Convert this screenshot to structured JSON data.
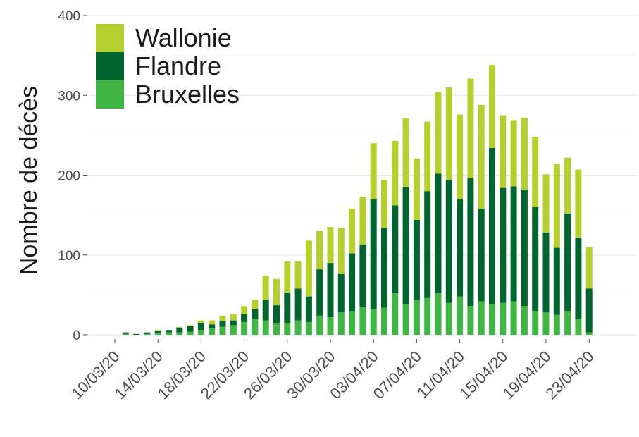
{
  "chart_data": {
    "type": "bar",
    "stacked": true,
    "ylabel": "Nombre de décès",
    "xlabel": "",
    "ylim": [
      0,
      400
    ],
    "yticks": [
      0,
      100,
      200,
      300,
      400
    ],
    "grid": true,
    "legend_position": "top-left",
    "categories": [
      "10/03/20",
      "11/03/20",
      "12/03/20",
      "13/03/20",
      "14/03/20",
      "15/03/20",
      "16/03/20",
      "17/03/20",
      "18/03/20",
      "19/03/20",
      "20/03/20",
      "21/03/20",
      "22/03/20",
      "23/03/20",
      "24/03/20",
      "25/03/20",
      "26/03/20",
      "27/03/20",
      "28/03/20",
      "29/03/20",
      "30/03/20",
      "31/03/20",
      "01/04/20",
      "02/04/20",
      "03/04/20",
      "04/04/20",
      "05/04/20",
      "06/04/20",
      "07/04/20",
      "08/04/20",
      "09/04/20",
      "10/04/20",
      "11/04/20",
      "12/04/20",
      "13/04/20",
      "14/04/20",
      "15/04/20",
      "16/04/20",
      "17/04/20",
      "18/04/20",
      "19/04/20",
      "20/04/20",
      "21/04/20",
      "22/04/20",
      "23/04/20"
    ],
    "tick_labels": [
      "10/03/20",
      "14/03/20",
      "18/03/20",
      "22/03/20",
      "26/03/20",
      "30/03/20",
      "03/04/20",
      "07/04/20",
      "11/04/20",
      "15/04/20",
      "19/04/20",
      "23/04/20"
    ],
    "series": [
      {
        "name": "Bruxelles",
        "color": "#41b543",
        "values": [
          0,
          1,
          0,
          1,
          2,
          3,
          3,
          4,
          6,
          8,
          10,
          12,
          16,
          20,
          18,
          15,
          15,
          18,
          16,
          24,
          22,
          28,
          30,
          35,
          32,
          34,
          52,
          38,
          44,
          46,
          52,
          40,
          48,
          36,
          42,
          38,
          40,
          42,
          36,
          30,
          28,
          25,
          30,
          20,
          3
        ]
      },
      {
        "name": "Flandre",
        "color": "#00642f",
        "values": [
          0,
          2,
          1,
          2,
          3,
          3,
          6,
          7,
          9,
          5,
          7,
          6,
          10,
          12,
          26,
          22,
          38,
          40,
          32,
          58,
          68,
          48,
          72,
          78,
          138,
          100,
          110,
          147,
          100,
          134,
          150,
          154,
          122,
          160,
          116,
          196,
          144,
          144,
          146,
          130,
          100,
          84,
          122,
          102,
          55
        ]
      },
      {
        "name": "Wallonie",
        "color": "#b5cf2f",
        "values": [
          0,
          0,
          0,
          0,
          1,
          0,
          1,
          1,
          3,
          5,
          7,
          8,
          10,
          12,
          30,
          33,
          39,
          34,
          70,
          48,
          45,
          58,
          56,
          60,
          70,
          60,
          81,
          86,
          77,
          87,
          102,
          116,
          106,
          125,
          130,
          104,
          91,
          83,
          90,
          88,
          73,
          105,
          70,
          85,
          52
        ]
      }
    ]
  }
}
